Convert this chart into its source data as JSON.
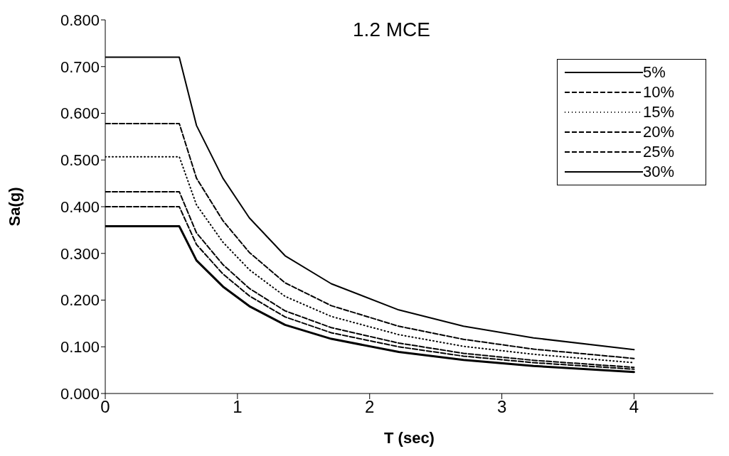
{
  "chart_data": {
    "type": "line",
    "title": "1.2 MCE",
    "xlabel": "T (sec)",
    "ylabel": "Sa(g)",
    "x": [
      0,
      0.56,
      0.69,
      0.89,
      1.09,
      1.36,
      1.71,
      2.22,
      2.71,
      3.24,
      4
    ],
    "series": [
      {
        "name": "5%",
        "color": "#000000",
        "line_style": "solid",
        "values": [
          0.72,
          0.72,
          0.574,
          0.461,
          0.376,
          0.295,
          0.235,
          0.179,
          0.144,
          0.119,
          0.094
        ]
      },
      {
        "name": "10%",
        "color": "#000000",
        "line_style": "dashed",
        "values": [
          0.578,
          0.578,
          0.461,
          0.37,
          0.302,
          0.237,
          0.188,
          0.144,
          0.116,
          0.095,
          0.075
        ]
      },
      {
        "name": "15%",
        "color": "#000000",
        "line_style": "dotted",
        "values": [
          0.507,
          0.507,
          0.404,
          0.324,
          0.265,
          0.208,
          0.165,
          0.126,
          0.101,
          0.084,
          0.066
        ]
      },
      {
        "name": "20%",
        "color": "#000000",
        "line_style": "dashed",
        "values": [
          0.432,
          0.432,
          0.344,
          0.276,
          0.225,
          0.177,
          0.141,
          0.108,
          0.086,
          0.071,
          0.056
        ]
      },
      {
        "name": "25%",
        "color": "#000000",
        "line_style": "dashed",
        "values": [
          0.4,
          0.4,
          0.319,
          0.256,
          0.209,
          0.164,
          0.13,
          0.1,
          0.08,
          0.066,
          0.052
        ]
      },
      {
        "name": "30%",
        "color": "#000000",
        "line_style": "solid",
        "values": [
          0.358,
          0.358,
          0.285,
          0.229,
          0.187,
          0.147,
          0.117,
          0.089,
          0.072,
          0.059,
          0.046
        ]
      }
    ],
    "xlim": [
      0,
      4.6
    ],
    "xticks": [
      0,
      1,
      2,
      3,
      4
    ],
    "ylim": [
      0,
      0.8
    ],
    "yticks": [
      {
        "value": 0,
        "label": "0.000"
      },
      {
        "value": 0.1,
        "label": "0.100"
      },
      {
        "value": 0.2,
        "label": "0.200"
      },
      {
        "value": 0.3,
        "label": "0.300"
      },
      {
        "value": 0.4,
        "label": "0.400"
      },
      {
        "value": 0.5,
        "label": "0.500"
      },
      {
        "value": 0.6,
        "label": "0.600"
      },
      {
        "value": 0.7,
        "label": "0.700"
      },
      {
        "value": 0.8,
        "label": "0.800"
      }
    ],
    "grid": false,
    "legend": "top right",
    "marker": "none"
  }
}
